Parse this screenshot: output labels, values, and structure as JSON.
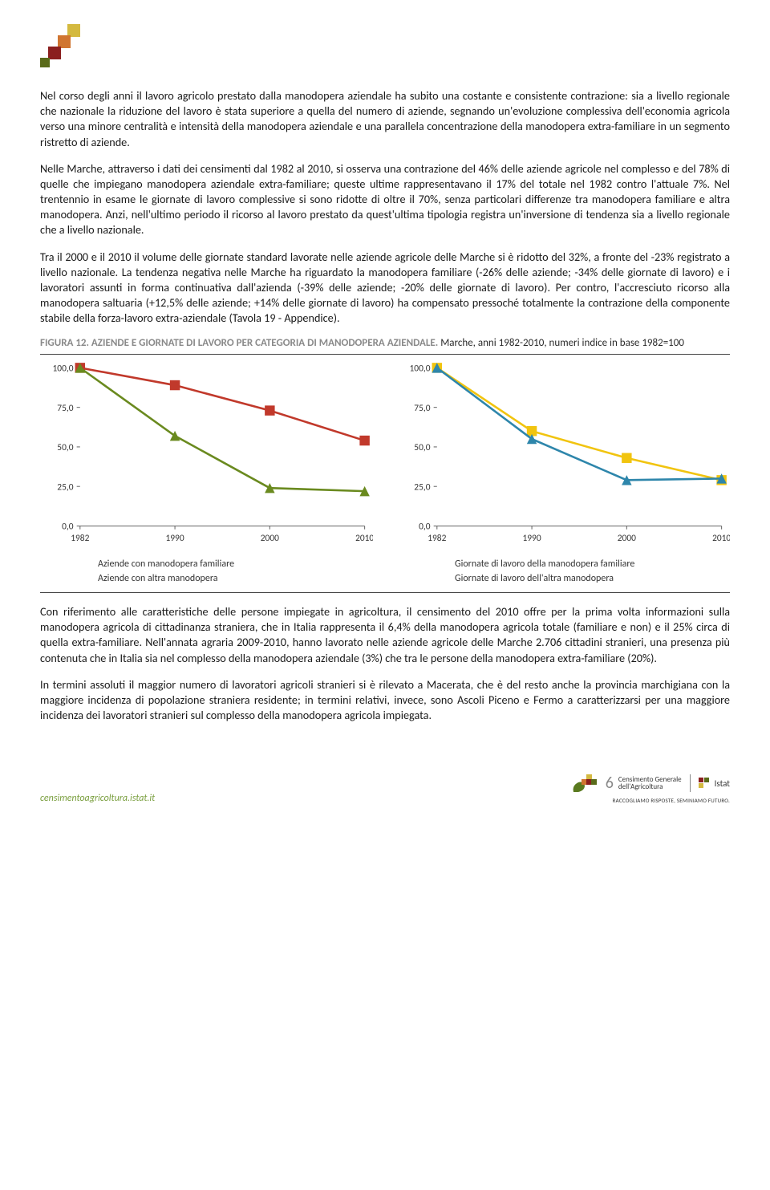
{
  "logo_colors": [
    "#d4b93f",
    "#d07530",
    "#8b1f1f",
    "#5a6b1a"
  ],
  "paragraphs": {
    "p1": "Nel corso degli anni il lavoro agricolo prestato dalla manodopera aziendale ha subito una costante e consistente contrazione: sia a livello regionale che nazionale la riduzione del lavoro è stata superiore a quella del numero di aziende, segnando un'evoluzione complessiva dell'economia agricola verso una minore centralità e intensità della manodopera aziendale e una parallela concentrazione della manodopera extra-familiare in un segmento ristretto di aziende.",
    "p2": "Nelle Marche, attraverso i dati dei censimenti dal 1982 al 2010, si osserva una contrazione del 46% delle aziende agricole nel complesso e del 78% di quelle che impiegano manodopera aziendale extra-familiare; queste ultime rappresentavano il 17% del totale nel 1982 contro l'attuale 7%. Nel trentennio in esame le giornate di lavoro complessive si sono ridotte di oltre il 70%, senza particolari differenze tra manodopera familiare e altra manodopera. Anzi, nell'ultimo periodo il ricorso al lavoro prestato da quest'ultima tipologia registra un'inversione di tendenza sia a livello regionale che a livello nazionale.",
    "p3": "Tra il 2000 e il 2010 il volume delle giornate standard lavorate nelle aziende agricole delle Marche si è ridotto del 32%, a fronte del -23% registrato a livello nazionale. La tendenza negativa nelle Marche ha riguardato la manodopera familiare (-26% delle aziende; -34% delle giornate di lavoro) e i lavoratori assunti in forma continuativa dall'azienda (-39% delle aziende; -20% delle giornate di lavoro). Per contro, l'accresciuto ricorso alla manodopera saltuaria (+12,5% delle aziende; +14% delle giornate di lavoro) ha compensato pressoché totalmente la contrazione della componente stabile della forza-lavoro extra-aziendale (Tavola 19 - Appendice).",
    "p4": "Con riferimento alle caratteristiche delle persone impiegate in agricoltura, il censimento del 2010 offre per la prima volta informazioni sulla manodopera agricola di cittadinanza straniera, che in Italia rappresenta il 6,4% della manodopera agricola totale (familiare e non) e il 25% circa di quella extra-familiare. Nell'annata agraria 2009-2010, hanno lavorato nelle aziende agricole delle Marche 2.706 cittadini stranieri, una presenza più contenuta che in Italia sia nel complesso della manodopera aziendale (3%) che tra le persone della manodopera extra-familiare (20%).",
    "p5": "In termini assoluti il maggior numero di lavoratori agricoli stranieri si è rilevato a Macerata, che è del resto anche la provincia marchigiana con la maggiore incidenza di popolazione straniera residente; in termini relativi, invece, sono Ascoli Piceno e Fermo a caratterizzarsi per una maggiore incidenza dei lavoratori stranieri sul complesso della manodopera agricola impiegata."
  },
  "figure_caption": {
    "prefix": "FIGURA 12. AZIENDE E GIORNATE DI LAVORO PER CATEGORIA DI MANODOPERA AZIENDALE.",
    "suffix": " Marche, anni 1982-2010, numeri indice in base 1982=100"
  },
  "chart_left": {
    "type": "line",
    "x_labels": [
      "1982",
      "1990",
      "2000",
      "2010"
    ],
    "y_ticks": [
      "0,0",
      "25,0",
      "50,0",
      "75,0",
      "100,0"
    ],
    "ylim": [
      0,
      100
    ],
    "series": [
      {
        "name": "Aziende con manodopera familiare",
        "color": "#c1392b",
        "marker": "square",
        "values": [
          100,
          89,
          73,
          54
        ]
      },
      {
        "name": "Aziende con altra manodopera",
        "color": "#6a8a1f",
        "marker": "triangle",
        "values": [
          100,
          57,
          24,
          22
        ]
      }
    ],
    "font_size": 11,
    "axis_color": "#666666",
    "text_color": "#333333",
    "line_width": 2.5,
    "marker_size": 6
  },
  "chart_right": {
    "type": "line",
    "x_labels": [
      "1982",
      "1990",
      "2000",
      "2010"
    ],
    "y_ticks": [
      "0,0",
      "25,0",
      "50,0",
      "75,0",
      "100,0"
    ],
    "ylim": [
      0,
      100
    ],
    "series": [
      {
        "name": "Giornate di lavoro della manodopera familiare",
        "color": "#f1c40f",
        "marker": "square",
        "values": [
          100,
          60,
          43,
          29
        ]
      },
      {
        "name": "Giornate di lavoro dell'altra manodopera",
        "color": "#2e86ab",
        "marker": "triangle",
        "values": [
          100,
          55,
          29,
          30
        ]
      }
    ],
    "font_size": 11,
    "axis_color": "#666666",
    "text_color": "#333333",
    "line_width": 2.5,
    "marker_size": 6
  },
  "footer": {
    "url": "censimentoagricoltura.istat.it",
    "census_line1": "Censimento Generale",
    "census_line2": "dell'Agricoltura",
    "istat": "Istat",
    "tagline": "RACCOGLIAMO RISPOSTE, SEMINIAMO FUTURO."
  }
}
